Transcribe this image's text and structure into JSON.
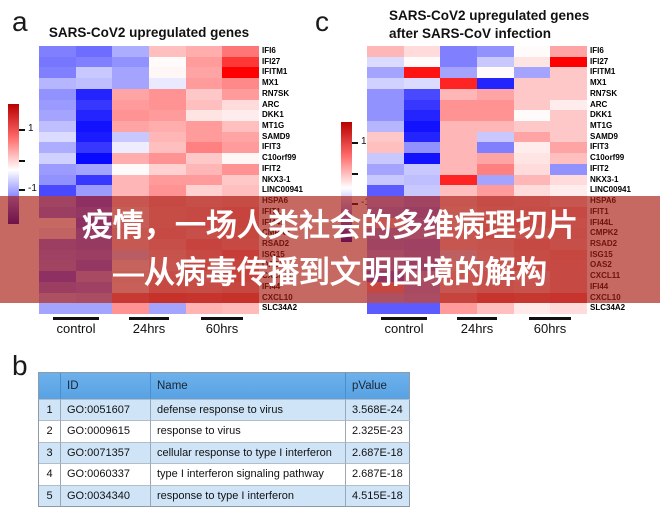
{
  "figure": {
    "panel_a": {
      "letter": "a",
      "title": "SARS-CoV2 upregulated genes",
      "x_groups": [
        "control",
        "24hrs",
        "60hrs"
      ],
      "colorbar": {
        "tick_top": "1",
        "tick_bottom": "-1"
      }
    },
    "panel_c": {
      "letter": "c",
      "title_line1": "SARS-CoV2 upregulated genes",
      "title_line2": "after SARS-CoV infection",
      "x_groups": [
        "control",
        "24hrs",
        "60hrs"
      ],
      "colorbar": {
        "tick_top": "1",
        "tick_bottom": "-1"
      }
    },
    "overlay": {
      "line1": "疫情，一场人类社会的多维病理切片",
      "line2": "—从病毒传播到文明困境的解构"
    },
    "panel_b": {
      "letter": "b",
      "table": {
        "headers": {
          "num": "",
          "id": "ID",
          "name": "Name",
          "pvalue": "pValue"
        },
        "rows": [
          {
            "num": "1",
            "id": "GO:0051607",
            "name": "defense response to virus",
            "pvalue": "3.568E-24"
          },
          {
            "num": "2",
            "id": "GO:0009615",
            "name": "response to virus",
            "pvalue": "2.325E-23"
          },
          {
            "num": "3",
            "id": "GO:0071357",
            "name": "cellular response to type I interferon",
            "pvalue": "2.687E-18"
          },
          {
            "num": "4",
            "id": "GO:0060337",
            "name": "type I interferon signaling pathway",
            "pvalue": "2.687E-18"
          },
          {
            "num": "5",
            "id": "GO:0034340",
            "name": "response to type I interferon",
            "pvalue": "4.515E-18"
          }
        ]
      }
    }
  },
  "colors": {
    "overlay_band": "rgba(168,28,16,0.66)",
    "overlay_text": "#ffffff",
    "table_header_bg": "#5ea6e6",
    "table_row_alt_bg": "#cfe5f7",
    "heatmap_max_red": "#ff0000",
    "heatmap_min_blue": "#0000ff"
  },
  "chart_data": [
    {
      "type": "heatmap",
      "panel": "a",
      "title": "SARS-CoV2 upregulated genes",
      "columns": [
        "control-1",
        "control-2",
        "24hrs-1",
        "24hrs-2",
        "60hrs-1",
        "60hrs-2"
      ],
      "column_groups": [
        "control",
        "24hrs",
        "60hrs"
      ],
      "genes": [
        "IFI6",
        "IFI27",
        "IFITM1",
        "MX1",
        "RN7SK",
        "ARC",
        "DKK1",
        "MT1G",
        "SAMD9",
        "IFIT3",
        "C10orf99",
        "IFIT2",
        "NKX3-1",
        "LINC00941",
        "HSPA6",
        "IFIT1",
        "IFI44L",
        "CMPK2",
        "RSAD2",
        "ISG15",
        "OAS2",
        "CXCL11",
        "IFI44",
        "CXCL10",
        "SLC34A2"
      ],
      "colorscale": {
        "palette": "blue-white-red",
        "ticks": [
          1,
          0,
          -1
        ],
        "vmin": -1.4,
        "vmax": 1.4
      },
      "values": [
        [
          -0.7,
          -0.8,
          -0.45,
          0.35,
          0.45,
          0.75
        ],
        [
          -0.75,
          -0.7,
          -0.6,
          0.02,
          0.55,
          1.1
        ],
        [
          -0.7,
          -0.3,
          -0.5,
          0.05,
          0.5,
          1.4
        ],
        [
          -0.4,
          -0.35,
          -0.5,
          -0.12,
          0.55,
          0.65
        ],
        [
          -0.6,
          -1.2,
          0.5,
          0.6,
          0.3,
          0.55
        ],
        [
          -0.55,
          -1.1,
          0.55,
          0.6,
          0.35,
          0.2
        ],
        [
          -0.5,
          -1.2,
          0.6,
          0.55,
          0.15,
          0.1
        ],
        [
          -0.35,
          -1.3,
          0.5,
          0.45,
          0.55,
          0.35
        ],
        [
          -0.2,
          -1.25,
          -0.3,
          0.4,
          0.55,
          0.5
        ],
        [
          -0.45,
          -1.1,
          -0.1,
          0.35,
          0.7,
          0.55
        ],
        [
          -0.25,
          -1.35,
          0.45,
          0.6,
          0.3,
          0.05
        ],
        [
          -0.55,
          -0.5,
          0.02,
          0.25,
          0.4,
          0.6
        ],
        [
          -0.6,
          -1.1,
          0.4,
          0.55,
          0.55,
          0.3
        ],
        [
          -1.0,
          -0.55,
          0.4,
          0.6,
          0.25,
          0.35
        ],
        [
          -0.6,
          -0.9,
          0.3,
          0.5,
          0.4,
          0.45
        ],
        [
          -0.7,
          -0.8,
          0.2,
          0.45,
          0.5,
          0.6
        ],
        [
          0.0,
          -0.9,
          0.2,
          0.45,
          0.5,
          0.6
        ],
        [
          -0.1,
          -0.75,
          0.3,
          0.5,
          0.4,
          0.55
        ],
        [
          -0.7,
          -0.75,
          0.25,
          0.4,
          0.6,
          0.5
        ],
        [
          -0.65,
          -0.7,
          -0.2,
          0.35,
          0.5,
          0.7
        ],
        [
          -0.6,
          -0.8,
          0.1,
          0.3,
          0.55,
          0.6
        ],
        [
          -0.9,
          -0.5,
          0.2,
          0.45,
          0.4,
          0.65
        ],
        [
          -0.7,
          -0.65,
          0.15,
          0.5,
          0.45,
          0.55
        ],
        [
          -0.4,
          -0.45,
          0.75,
          0.9,
          0.85,
          0.9
        ],
        [
          -0.5,
          -0.5,
          0.6,
          -0.5,
          0.42,
          0.38
        ]
      ]
    },
    {
      "type": "heatmap",
      "panel": "c",
      "title": "SARS-CoV2 upregulated genes after SARS-CoV infection",
      "columns": [
        "control-1",
        "control-2",
        "24hrs-1",
        "24hrs-2",
        "60hrs-1",
        "60hrs-2"
      ],
      "column_groups": [
        "control",
        "24hrs",
        "60hrs"
      ],
      "genes": [
        "IFI6",
        "IFI27",
        "IFITM1",
        "MX1",
        "RN7SK",
        "ARC",
        "DKK1",
        "MT1G",
        "SAMD9",
        "IFIT3",
        "C10orf99",
        "IFIT2",
        "NKX3-1",
        "LINC00941",
        "HSPA6",
        "IFIT1",
        "IFI44L",
        "CMPK2",
        "RSAD2",
        "ISG15",
        "OAS2",
        "CXCL11",
        "IFI44",
        "CXCL10",
        "SLC34A2"
      ],
      "colorscale": {
        "palette": "blue-white-red",
        "ticks": [
          1,
          0,
          -1
        ],
        "vmin": -1.4,
        "vmax": 1.4
      },
      "values": [
        [
          0.4,
          0.2,
          -0.7,
          -0.6,
          0.02,
          0.5
        ],
        [
          -0.2,
          0.02,
          -0.7,
          -0.3,
          0.15,
          1.4
        ],
        [
          -0.5,
          1.3,
          -0.5,
          0.02,
          -0.5,
          0.3
        ],
        [
          -0.25,
          -0.2,
          1.2,
          -1.2,
          0.3,
          0.3
        ],
        [
          -0.6,
          -1.0,
          0.4,
          0.5,
          0.3,
          0.3
        ],
        [
          -0.6,
          -1.1,
          0.6,
          0.6,
          0.3,
          0.1
        ],
        [
          -0.6,
          -1.2,
          0.6,
          0.6,
          0.02,
          0.3
        ],
        [
          -0.4,
          -1.3,
          0.4,
          0.4,
          0.3,
          0.3
        ],
        [
          0.3,
          -1.2,
          0.4,
          -0.3,
          0.5,
          0.3
        ],
        [
          0.35,
          -0.6,
          0.4,
          -0.7,
          0.1,
          0.5
        ],
        [
          -0.3,
          -1.3,
          0.4,
          0.5,
          0.15,
          0.35
        ],
        [
          -0.5,
          -0.3,
          0.4,
          0.7,
          0.2,
          -0.6
        ],
        [
          -0.3,
          -0.35,
          1.2,
          -0.5,
          0.4,
          0.2
        ],
        [
          -0.9,
          -0.3,
          0.35,
          0.55,
          0.2,
          0.1
        ],
        [
          -0.5,
          -0.6,
          0.3,
          0.45,
          0.4,
          0.3
        ],
        [
          -0.6,
          -0.7,
          0.25,
          0.4,
          0.45,
          0.5
        ],
        [
          0.3,
          -0.6,
          0.2,
          0.45,
          0.5,
          0.4
        ],
        [
          -0.55,
          -0.5,
          0.3,
          0.5,
          0.35,
          0.45
        ],
        [
          -0.6,
          -0.65,
          0.3,
          0.35,
          0.5,
          0.4
        ],
        [
          -0.5,
          -0.6,
          -0.15,
          0.3,
          0.45,
          0.55
        ],
        [
          -0.55,
          -0.7,
          0.15,
          0.25,
          0.5,
          0.5
        ],
        [
          -0.85,
          -0.4,
          0.3,
          0.4,
          0.3,
          0.5
        ],
        [
          0.55,
          -0.5,
          0.3,
          0.4,
          0.35,
          0.5
        ],
        [
          -0.4,
          -0.45,
          0.6,
          0.85,
          0.8,
          0.85
        ],
        [
          -0.9,
          -0.9,
          0.55,
          0.35,
          0.12,
          0.2
        ]
      ]
    }
  ]
}
